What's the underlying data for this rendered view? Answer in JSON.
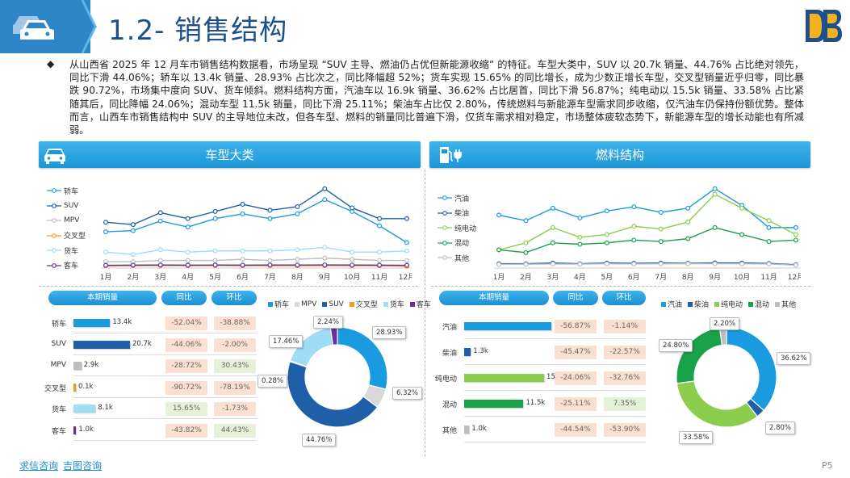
{
  "header": {
    "title": "1.2- 销售结构"
  },
  "summary": {
    "bullet": "◆",
    "text": "从山西省 2025 年 12 月车市销售结构数据看，市场呈现 “SUV 主导、燃油仍占优但新能源收缩” 的特征。车型大类中，SUV 以 20.7k 销量、44.76% 占比绝对领先，同比下滑 44.06%；轿车以 13.4k 销量、28.93% 占比次之，同比降幅超 52%；货车实现 15.65% 的同比增长，成为少数正增长车型，交叉型销量近乎归零，同比暴跌 90.72%，市场集中度向 SUV、货车倾斜。燃料结构方面，汽油车以 16.9k 销量、36.62% 占比居首，同比下滑 56.87%；纯电动以 15.5k 销量、33.58% 占比紧随其后，同比降幅 24.06%；混动车型 11.5k 销量，同比下滑 25.11%；柴油车占比仅 2.80%，传统燃料与新能源车型需求同步收缩，仅汽油车仍保持份额优势。整体而言，山西车市销售结构中 SUV 的主导地位未改，但各车型、燃料的销量同比普遍下滑，仅货车需求相对稳定，市场整体疲软态势下，新能源车型的增长动能也有所减弱。"
  },
  "sections": {
    "left_title": "车型大类",
    "right_title": "燃料结构"
  },
  "table_headers": {
    "current": "本期销量",
    "yoy": "同比",
    "mom": "环比"
  },
  "vehicle_table": [
    {
      "name": "轿车",
      "value_label": "13.4k",
      "yoy": "-52.04%",
      "mom": "-38.88%"
    },
    {
      "name": "SUV",
      "value_label": "20.7k",
      "yoy": "-44.06%",
      "mom": "-2.00%"
    },
    {
      "name": "MPV",
      "value_label": "2.9k",
      "yoy": "-28.72%",
      "mom": "30.43%"
    },
    {
      "name": "交叉型",
      "value_label": "0.1k",
      "yoy": "-90.72%",
      "mom": "-78.19%"
    },
    {
      "name": "货车",
      "value_label": "8.1k",
      "yoy": "15.65%",
      "mom": "-1.73%"
    },
    {
      "name": "客车",
      "value_label": "1.0k",
      "yoy": "-43.82%",
      "mom": "44.43%"
    }
  ],
  "fuel_table": [
    {
      "name": "汽油",
      "value_label": "16.9k",
      "yoy": "-56.87%",
      "mom": "-1.14%"
    },
    {
      "name": "柴油",
      "value_label": "1.3k",
      "yoy": "-45.47%",
      "mom": "-22.57%"
    },
    {
      "name": "纯电动",
      "value_label": "15.5k",
      "yoy": "-24.06%",
      "mom": "-32.76%"
    },
    {
      "name": "混动",
      "value_label": "11.5k",
      "yoy": "-25.11%",
      "mom": "7.35%"
    },
    {
      "name": "其他",
      "value_label": "1.0k",
      "yoy": "-44.54%",
      "mom": "-53.90%"
    }
  ],
  "chart_data": [
    {
      "type": "line",
      "categories": [
        "1月",
        "2月",
        "3月",
        "4月",
        "5月",
        "6月",
        "7月",
        "8月",
        "9月",
        "10月",
        "11月",
        "12月"
      ],
      "legend": "left",
      "series": [
        {
          "name": "轿车",
          "color": "#1a9be0",
          "values": [
            29,
            30,
            38,
            33,
            40,
            44,
            40,
            44,
            56,
            46,
            34,
            20
          ]
        },
        {
          "name": "SUV",
          "color": "#1f5fa8",
          "values": [
            37,
            35,
            45,
            40,
            46,
            52,
            47,
            50,
            65,
            49,
            40,
            40
          ]
        },
        {
          "name": "MPV",
          "color": "#bdbdbd",
          "values": [
            4,
            4,
            5,
            5,
            5,
            6,
            5,
            6,
            7,
            6,
            5,
            5
          ]
        },
        {
          "name": "交叉型",
          "color": "#f39a1e",
          "values": [
            0.5,
            0.6,
            0.7,
            0.6,
            0.7,
            0.6,
            0.6,
            0.6,
            0.7,
            0.6,
            0.6,
            0.1
          ]
        },
        {
          "name": "货车",
          "color": "#9fdcf5",
          "values": [
            12,
            10,
            14,
            12,
            13,
            13,
            13,
            14,
            16,
            12,
            12,
            13
          ]
        },
        {
          "name": "客车",
          "color": "#6a2f9b",
          "values": [
            1.0,
            1.1,
            1.2,
            1.1,
            1.2,
            1.1,
            1.2,
            1.2,
            1.3,
            1.2,
            1.1,
            1.0
          ]
        }
      ]
    },
    {
      "type": "pie",
      "legend": "top",
      "slices": [
        {
          "name": "轿车",
          "value": 28.93,
          "label": "28.93%",
          "color": "#1a9be0"
        },
        {
          "name": "MPV",
          "value": 6.32,
          "label": "6.32%",
          "color": "#d9d9d9"
        },
        {
          "name": "SUV",
          "value": 44.76,
          "label": "44.76%",
          "color": "#1f5fa8"
        },
        {
          "name": "交叉型",
          "value": 0.28,
          "label": "0.28%",
          "color": "#f39a1e"
        },
        {
          "name": "货车",
          "value": 17.46,
          "label": "17.46%",
          "color": "#9fdcf5"
        },
        {
          "name": "客车",
          "value": 2.24,
          "label": "2.24%",
          "color": "#6a2f9b"
        }
      ]
    },
    {
      "type": "line",
      "categories": [
        "1月",
        "2月",
        "3月",
        "4月",
        "5月",
        "6月",
        "7月",
        "8月",
        "9月",
        "10月",
        "11月",
        "12月"
      ],
      "legend": "left",
      "series": [
        {
          "name": "汽油",
          "color": "#1a9be0",
          "values": [
            37,
            33,
            42,
            35,
            40,
            43,
            39,
            42,
            56,
            44,
            28,
            28
          ]
        },
        {
          "name": "柴油",
          "color": "#1f5fa8",
          "values": [
            2,
            2,
            2.5,
            2,
            2.5,
            2.3,
            2.5,
            2.3,
            2.6,
            2.5,
            2.2,
            1.3
          ]
        },
        {
          "name": "纯电动",
          "color": "#8ccd4e",
          "values": [
            12,
            17,
            28,
            21,
            23,
            29,
            27,
            32,
            52,
            42,
            33,
            23
          ]
        },
        {
          "name": "混动",
          "color": "#1aa24a",
          "values": [
            12,
            10,
            17,
            16,
            17,
            19,
            18,
            20,
            28,
            23,
            18,
            19
          ]
        },
        {
          "name": "其他",
          "color": "#bdbdbd",
          "values": [
            1.5,
            1.6,
            1.8,
            1.7,
            1.9,
            1.8,
            1.9,
            1.9,
            2.0,
            1.9,
            1.8,
            1.0
          ]
        }
      ]
    },
    {
      "type": "pie",
      "legend": "top",
      "slices": [
        {
          "name": "汽油",
          "value": 36.62,
          "label": "36.62%",
          "color": "#1a9be0"
        },
        {
          "name": "柴油",
          "value": 2.8,
          "label": "2.80%",
          "color": "#1f5fa8"
        },
        {
          "name": "纯电动",
          "value": 33.58,
          "label": "33.58%",
          "color": "#8ccd4e"
        },
        {
          "name": "混动",
          "value": 24.8,
          "label": "24.80%",
          "color": "#1aa24a"
        },
        {
          "name": "其他",
          "value": 2.2,
          "label": "2.20%",
          "color": "#bdbdbd"
        }
      ]
    }
  ],
  "bar_values": {
    "vehicle": [
      13.4,
      20.7,
      2.9,
      0.1,
      8.1,
      1.0
    ],
    "fuel": [
      16.9,
      1.3,
      15.5,
      11.5,
      1.0
    ]
  },
  "bar_colors": {
    "vehicle": [
      "#1a9be0",
      "#1f5fa8",
      "#bdbdbd",
      "#f39a1e",
      "#9fdcf5",
      "#6a2f9b"
    ],
    "fuel": [
      "#1a9be0",
      "#1f5fa8",
      "#8ccd4e",
      "#1aa24a",
      "#bdbdbd"
    ]
  },
  "footer": {
    "link1": "求信咨询",
    "link2": "吉图咨询",
    "page": "P5"
  },
  "icons": {
    "header": "car-icon",
    "left_section": "car-icon",
    "right_section": "fuel-pump-plug-icon",
    "logo": "db-logo-icon"
  }
}
